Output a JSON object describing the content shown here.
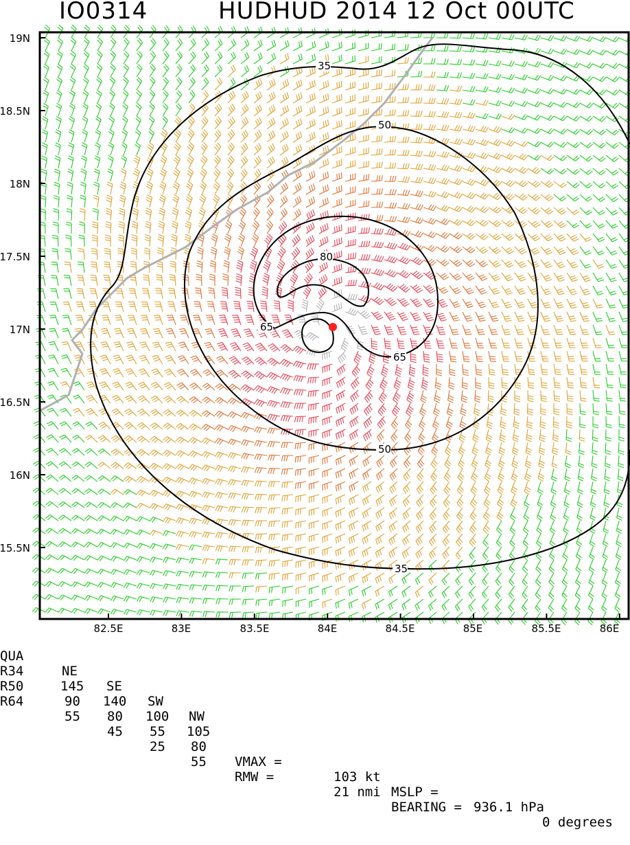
{
  "header": {
    "storm_id": "IO0314",
    "storm_title": "HUDHUD 2014 12 Oct 00UTC"
  },
  "colors": {
    "green": "#22cc22",
    "gold": "#e0a030",
    "orange": "#e07030",
    "red": "#e84050",
    "gray": "#b0b0b0",
    "center": "#ff2020"
  },
  "axes": {
    "lat_ticks": [
      "19N",
      "18.5N",
      "18N",
      "17.5N",
      "17N",
      "16.5N",
      "16N",
      "15.5N"
    ],
    "lon_ticks": [
      "82.5E",
      "83E",
      "83.5E",
      "84E",
      "84.5E",
      "85E",
      "85.5E",
      "86E"
    ]
  },
  "contours": {
    "labels": [
      "35",
      "50",
      "65",
      "80",
      "65",
      "50",
      "35"
    ]
  },
  "stats": {
    "quad_header": [
      "QUA",
      "NE",
      "SE",
      "SW",
      "NW"
    ],
    "r34": [
      "R34",
      "145",
      "140",
      "100",
      "105"
    ],
    "r50": [
      "R50",
      "90",
      "80",
      "55",
      "80"
    ],
    "r64": [
      "R64",
      "55",
      "45",
      "25",
      "55"
    ],
    "vmax_label": "VMAX =",
    "vmax_value": "103 kt",
    "mslp_label": "MSLP =",
    "mslp_value": "936.1 hPa",
    "rmw_label": "RMW =",
    "rmw_value": "21 nmi",
    "bearing_label": "BEARING =",
    "bearing_value": "0 degrees"
  }
}
